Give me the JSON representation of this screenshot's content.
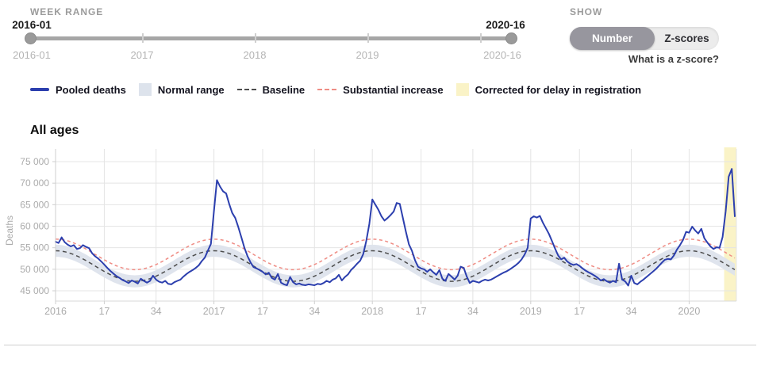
{
  "week_range": {
    "label": "WEEK RANGE",
    "start_value": "2016-01",
    "end_value": "2020-16",
    "axis_labels": [
      "2016-01",
      "2017",
      "2018",
      "2019",
      "2020-16"
    ]
  },
  "show": {
    "label": "SHOW",
    "options": [
      {
        "label": "Number",
        "selected": true
      },
      {
        "label": "Z-scores",
        "selected": false
      }
    ],
    "help_text": "What is a z-score?"
  },
  "legend": [
    {
      "label": "Pooled deaths",
      "swatch": "line",
      "color": "#2c3fae"
    },
    {
      "label": "Normal range",
      "swatch": "area",
      "color": "#dde3ec"
    },
    {
      "label": "Baseline",
      "swatch": "dashed",
      "color": "#4d4d4d"
    },
    {
      "label": "Substantial increase",
      "swatch": "dashed",
      "color": "#ef8d85"
    },
    {
      "label": "Corrected for delay in registration",
      "swatch": "area",
      "color": "#faf3c7"
    }
  ],
  "section_title": "All ages",
  "chart_data": {
    "type": "line",
    "title": "All ages",
    "ylabel": "Deaths",
    "ylim": [
      42500,
      77500
    ],
    "yticks": [
      75000,
      70000,
      65000,
      60000,
      55000,
      50000,
      45000
    ],
    "ytick_labels": [
      "75 000",
      "70 000",
      "65 000",
      "60 000",
      "55 000",
      "50 000",
      "45 000"
    ],
    "x_start_week": "2016-01",
    "x_end_week": "2020-16",
    "weeks_total": 224,
    "xticks": [
      {
        "label": "2016",
        "week_index": 0
      },
      {
        "label": "17",
        "week_index": 16
      },
      {
        "label": "34",
        "week_index": 33
      },
      {
        "label": "2017",
        "week_index": 52
      },
      {
        "label": "17",
        "week_index": 68
      },
      {
        "label": "34",
        "week_index": 85
      },
      {
        "label": "2018",
        "week_index": 104
      },
      {
        "label": "17",
        "week_index": 120
      },
      {
        "label": "34",
        "week_index": 137
      },
      {
        "label": "2019",
        "week_index": 156
      },
      {
        "label": "17",
        "week_index": 172
      },
      {
        "label": "34",
        "week_index": 189
      },
      {
        "label": "2020",
        "week_index": 208
      }
    ],
    "grid": true,
    "legend_position": "top-outside",
    "baseline_model": {
      "mean": 50750,
      "amplitude": 3550,
      "period_weeks": 52,
      "winter_peak": 54300,
      "summer_trough": 47200
    },
    "normal_range_halfwidth": 1400,
    "substantial_increase_offset": 2700,
    "corrected_region": {
      "label": "Corrected for delay in registration",
      "color": "#faf3c7",
      "start_week_index": 219.5,
      "end_week_index": 223
    },
    "series": [
      {
        "name": "Pooled deaths",
        "color": "#2c3fae",
        "style": "solid",
        "values": [
          56400,
          56100,
          57400,
          56300,
          55700,
          55300,
          55600,
          54700,
          54900,
          55600,
          55200,
          54900,
          53700,
          53000,
          52500,
          51800,
          51100,
          50300,
          49600,
          49000,
          48400,
          48000,
          47500,
          47200,
          46800,
          47400,
          47100,
          46700,
          47800,
          47300,
          46900,
          47300,
          48500,
          47600,
          47100,
          46900,
          47300,
          46600,
          46500,
          47000,
          47300,
          47600,
          48300,
          48900,
          49400,
          49800,
          50300,
          50900,
          51900,
          52700,
          54300,
          55900,
          63500,
          70700,
          69200,
          68100,
          67600,
          65200,
          63100,
          61900,
          59800,
          57400,
          55000,
          53100,
          51600,
          50500,
          50200,
          49800,
          49400,
          48800,
          49200,
          48000,
          47600,
          48900,
          46900,
          46500,
          46300,
          48200,
          47000,
          46500,
          46700,
          46400,
          46300,
          46500,
          46400,
          46300,
          46600,
          46500,
          46800,
          47300,
          47000,
          47600,
          47900,
          48700,
          47400,
          48200,
          48800,
          49800,
          50500,
          51300,
          52000,
          53500,
          56500,
          60500,
          66200,
          65000,
          63800,
          62300,
          61300,
          61900,
          62600,
          63400,
          65400,
          65200,
          62000,
          58800,
          55800,
          54300,
          52100,
          50600,
          50200,
          50000,
          49400,
          50000,
          49300,
          48700,
          49800,
          47800,
          47300,
          48900,
          48300,
          47600,
          48500,
          50600,
          50300,
          48300,
          46800,
          47300,
          47100,
          46900,
          47300,
          47600,
          47400,
          47600,
          48000,
          48400,
          48800,
          49200,
          49500,
          49900,
          50400,
          50900,
          51500,
          52300,
          53400,
          55000,
          61800,
          62300,
          62000,
          62400,
          60800,
          59500,
          58200,
          56500,
          54800,
          53200,
          52300,
          52700,
          51800,
          51300,
          51000,
          51200,
          50800,
          50200,
          49700,
          49300,
          48900,
          48500,
          48000,
          47400,
          47700,
          47200,
          46900,
          47300,
          47000,
          51300,
          47600,
          47200,
          46200,
          48500,
          46800,
          46500,
          47100,
          47600,
          48200,
          48800,
          49400,
          50000,
          50700,
          51500,
          52200,
          52400,
          52300,
          53200,
          54600,
          55600,
          56800,
          58700,
          58500,
          59900,
          59000,
          58300,
          59400,
          57200,
          56200,
          55300,
          54700,
          55100,
          55000,
          57500,
          63500,
          71500,
          73300,
          62300
        ]
      },
      {
        "name": "Baseline",
        "color": "#4d4d4d",
        "style": "dashed",
        "derived": "baseline_model"
      },
      {
        "name": "Substantial increase",
        "color": "#ef8d85",
        "style": "dashed",
        "derived": "baseline_model + substantial_increase_offset"
      },
      {
        "name": "Normal range",
        "color": "#dde3ec",
        "style": "band",
        "derived": "baseline_model ± normal_range_halfwidth"
      }
    ]
  }
}
